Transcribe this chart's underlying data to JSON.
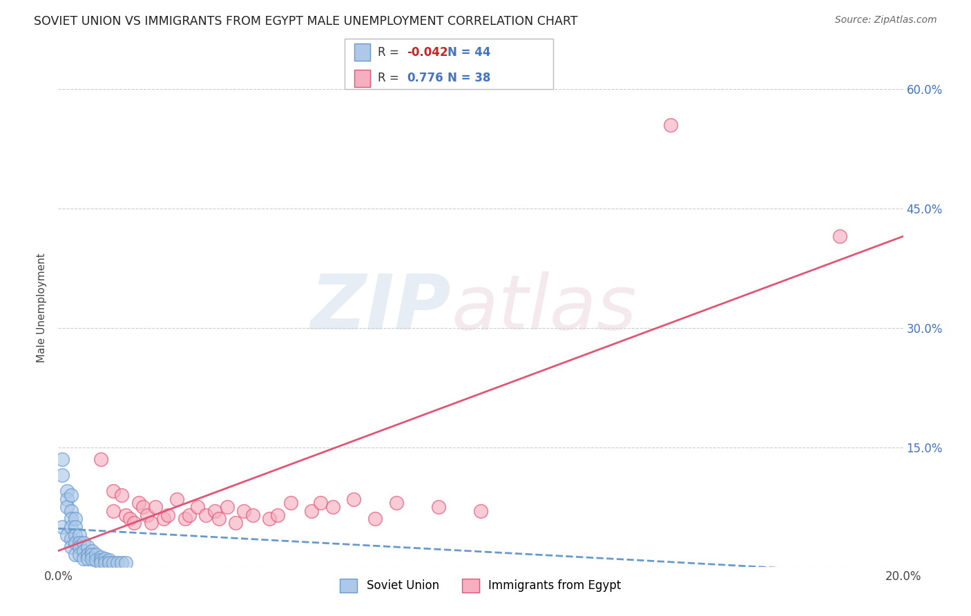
{
  "title": "SOVIET UNION VS IMMIGRANTS FROM EGYPT MALE UNEMPLOYMENT CORRELATION CHART",
  "source": "Source: ZipAtlas.com",
  "ylabel": "Male Unemployment",
  "xlim": [
    0.0,
    0.2
  ],
  "ylim": [
    0.0,
    0.65
  ],
  "xticks": [
    0.0,
    0.05,
    0.1,
    0.15,
    0.2
  ],
  "yticks": [
    0.0,
    0.15,
    0.3,
    0.45,
    0.6
  ],
  "legend1_label": "Soviet Union",
  "legend2_label": "Immigrants from Egypt",
  "r1": "-0.042",
  "n1": "44",
  "r2": "0.776",
  "n2": "38",
  "color_blue": "#adc8e8",
  "color_pink": "#f5afc0",
  "color_blue_line": "#6699cc",
  "color_pink_line": "#e05575",
  "blue_x": [
    0.001,
    0.001,
    0.001,
    0.002,
    0.002,
    0.002,
    0.002,
    0.003,
    0.003,
    0.003,
    0.003,
    0.003,
    0.003,
    0.004,
    0.004,
    0.004,
    0.004,
    0.004,
    0.005,
    0.005,
    0.005,
    0.005,
    0.006,
    0.006,
    0.006,
    0.007,
    0.007,
    0.007,
    0.008,
    0.008,
    0.008,
    0.009,
    0.009,
    0.01,
    0.01,
    0.01,
    0.011,
    0.011,
    0.012,
    0.012,
    0.013,
    0.014,
    0.015,
    0.016
  ],
  "blue_y": [
    0.135,
    0.115,
    0.05,
    0.095,
    0.085,
    0.075,
    0.04,
    0.09,
    0.07,
    0.06,
    0.05,
    0.035,
    0.025,
    0.06,
    0.05,
    0.04,
    0.03,
    0.015,
    0.04,
    0.03,
    0.025,
    0.015,
    0.03,
    0.02,
    0.01,
    0.025,
    0.015,
    0.01,
    0.02,
    0.015,
    0.01,
    0.015,
    0.008,
    0.012,
    0.008,
    0.005,
    0.01,
    0.005,
    0.008,
    0.005,
    0.005,
    0.005,
    0.005,
    0.005
  ],
  "pink_x": [
    0.01,
    0.013,
    0.013,
    0.015,
    0.016,
    0.017,
    0.018,
    0.019,
    0.02,
    0.021,
    0.022,
    0.023,
    0.025,
    0.026,
    0.028,
    0.03,
    0.031,
    0.033,
    0.035,
    0.037,
    0.038,
    0.04,
    0.042,
    0.044,
    0.046,
    0.05,
    0.052,
    0.055,
    0.06,
    0.062,
    0.065,
    0.07,
    0.075,
    0.08,
    0.09,
    0.1,
    0.145,
    0.185
  ],
  "pink_y": [
    0.135,
    0.095,
    0.07,
    0.09,
    0.065,
    0.06,
    0.055,
    0.08,
    0.075,
    0.065,
    0.055,
    0.075,
    0.06,
    0.065,
    0.085,
    0.06,
    0.065,
    0.075,
    0.065,
    0.07,
    0.06,
    0.075,
    0.055,
    0.07,
    0.065,
    0.06,
    0.065,
    0.08,
    0.07,
    0.08,
    0.075,
    0.085,
    0.06,
    0.08,
    0.075,
    0.07,
    0.555,
    0.415
  ],
  "pink_trend_x0": 0.0,
  "pink_trend_y0": 0.02,
  "pink_trend_x1": 0.2,
  "pink_trend_y1": 0.415,
  "blue_trend_x0": 0.0,
  "blue_trend_y0": 0.048,
  "blue_trend_x1": 0.2,
  "blue_trend_y1": -0.01
}
